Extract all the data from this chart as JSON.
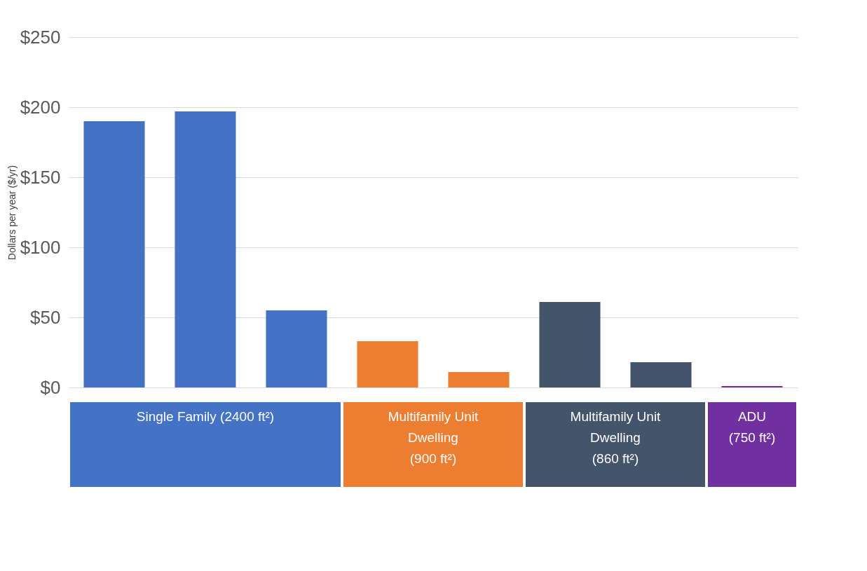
{
  "chart_data": {
    "type": "bar",
    "ylabel": "Dollars per year ($/yr)",
    "categories": [
      null,
      null,
      null,
      null,
      null,
      null,
      null,
      null
    ],
    "values": [
      190,
      197,
      55,
      33,
      11,
      61,
      18,
      1
    ],
    "colors": [
      "#4472c4",
      "#4472c4",
      "#4472c4",
      "#ed7d31",
      "#ed7d31",
      "#44546a",
      "#44546a",
      "#7030a0"
    ],
    "ylim": [
      0,
      250
    ],
    "yticks": [
      {
        "value": 0,
        "label": "$0"
      },
      {
        "value": 50,
        "label": "$50"
      },
      {
        "value": 100,
        "label": "$100"
      },
      {
        "value": 150,
        "label": "$150"
      },
      {
        "value": 200,
        "label": "$200"
      },
      {
        "value": 250,
        "label": "$250"
      }
    ],
    "grid": "y",
    "annotations": [
      "Single Family (2400 ft²)",
      "Multifamily Unit\nDwelling\n(900 ft²)",
      "Multifamily Unit\nDwelling\n(860 ft²)",
      "ADU\n(750 ft²)"
    ]
  }
}
